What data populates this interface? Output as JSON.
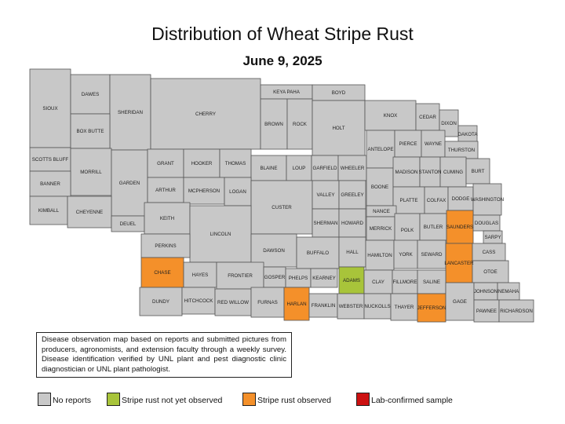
{
  "title": "Distribution of Wheat Stripe Rust",
  "date": "June 9, 2025",
  "colors": {
    "no_reports": "#c8c8c8",
    "not_observed": "#a8c43a",
    "observed": "#f4902a",
    "lab_confirmed": "#cc1111"
  },
  "note": "Disease observation map based on reports and submitted pictures from producers, agronomists, and extension faculty through a weekly survey. Disease identification verified by UNL plant and pest diagnostic clinic diagnostician or UNL plant pathologist.",
  "legend": [
    {
      "label": "No reports",
      "status": "none"
    },
    {
      "label": "Stripe rust not yet observed",
      "status": "not_observed"
    },
    {
      "label": "Stripe rust observed",
      "status": "observed"
    },
    {
      "label": "Lab-confirmed sample",
      "status": "lab_confirmed"
    }
  ],
  "counties": [
    {
      "name": "SIOUX",
      "status": "none"
    },
    {
      "name": "DAWES",
      "status": "none"
    },
    {
      "name": "SHERIDAN",
      "status": "none"
    },
    {
      "name": "CHERRY",
      "status": "none"
    },
    {
      "name": "KEYA PAHA",
      "status": "none"
    },
    {
      "name": "BOYD",
      "status": "none"
    },
    {
      "name": "BOX BUTTE",
      "status": "none"
    },
    {
      "name": "BROWN",
      "status": "none"
    },
    {
      "name": "ROCK",
      "status": "none"
    },
    {
      "name": "HOLT",
      "status": "none"
    },
    {
      "name": "KNOX",
      "status": "none"
    },
    {
      "name": "CEDAR",
      "status": "none"
    },
    {
      "name": "DIXON",
      "status": "none"
    },
    {
      "name": "DAKOTA",
      "status": "none"
    },
    {
      "name": "SCOTTS BLUFF",
      "status": "none"
    },
    {
      "name": "MORRILL",
      "status": "none"
    },
    {
      "name": "GARDEN",
      "status": "none"
    },
    {
      "name": "GRANT",
      "status": "none"
    },
    {
      "name": "HOOKER",
      "status": "none"
    },
    {
      "name": "THOMAS",
      "status": "none"
    },
    {
      "name": "BLAINE",
      "status": "none"
    },
    {
      "name": "LOUP",
      "status": "none"
    },
    {
      "name": "GARFIELD",
      "status": "none"
    },
    {
      "name": "WHEELER",
      "status": "none"
    },
    {
      "name": "ANTELOPE",
      "status": "none"
    },
    {
      "name": "PIERCE",
      "status": "none"
    },
    {
      "name": "WAYNE",
      "status": "none"
    },
    {
      "name": "THURSTON",
      "status": "none"
    },
    {
      "name": "BANNER",
      "status": "none"
    },
    {
      "name": "ARTHUR",
      "status": "none"
    },
    {
      "name": "MCPHERSON",
      "status": "none"
    },
    {
      "name": "LOGAN",
      "status": "none"
    },
    {
      "name": "CUSTER",
      "status": "none"
    },
    {
      "name": "VALLEY",
      "status": "none"
    },
    {
      "name": "GREELEY",
      "status": "none"
    },
    {
      "name": "BOONE",
      "status": "none"
    },
    {
      "name": "MADISON",
      "status": "none"
    },
    {
      "name": "STANTON",
      "status": "none"
    },
    {
      "name": "CUMING",
      "status": "none"
    },
    {
      "name": "BURT",
      "status": "none"
    },
    {
      "name": "KIMBALL",
      "status": "none"
    },
    {
      "name": "CHEYENNE",
      "status": "none"
    },
    {
      "name": "DEUEL",
      "status": "none"
    },
    {
      "name": "KEITH",
      "status": "none"
    },
    {
      "name": "PLATTE",
      "status": "none"
    },
    {
      "name": "COLFAX",
      "status": "none"
    },
    {
      "name": "DODGE",
      "status": "none"
    },
    {
      "name": "WASHINGTON",
      "status": "none"
    },
    {
      "name": "NANCE",
      "status": "none"
    },
    {
      "name": "SHERMAN",
      "status": "none"
    },
    {
      "name": "HOWARD",
      "status": "none"
    },
    {
      "name": "MERRICK",
      "status": "none"
    },
    {
      "name": "POLK",
      "status": "none"
    },
    {
      "name": "BUTLER",
      "status": "none"
    },
    {
      "name": "SAUNDERS",
      "status": "observed"
    },
    {
      "name": "DOUGLAS",
      "status": "none"
    },
    {
      "name": "SARPY",
      "status": "none"
    },
    {
      "name": "LINCOLN",
      "status": "none"
    },
    {
      "name": "PERKINS",
      "status": "none"
    },
    {
      "name": "DAWSON",
      "status": "none"
    },
    {
      "name": "BUFFALO",
      "status": "none"
    },
    {
      "name": "HALL",
      "status": "none"
    },
    {
      "name": "HAMILTON",
      "status": "none"
    },
    {
      "name": "YORK",
      "status": "none"
    },
    {
      "name": "SEWARD",
      "status": "none"
    },
    {
      "name": "LANCASTER",
      "status": "observed"
    },
    {
      "name": "CASS",
      "status": "none"
    },
    {
      "name": "OTOE",
      "status": "none"
    },
    {
      "name": "CHASE",
      "status": "observed"
    },
    {
      "name": "HAYES",
      "status": "none"
    },
    {
      "name": "FRONTIER",
      "status": "none"
    },
    {
      "name": "GOSPER",
      "status": "none"
    },
    {
      "name": "PHELPS",
      "status": "none"
    },
    {
      "name": "KEARNEY",
      "status": "none"
    },
    {
      "name": "ADAMS",
      "status": "not_observed"
    },
    {
      "name": "CLAY",
      "status": "none"
    },
    {
      "name": "FILLMORE",
      "status": "none"
    },
    {
      "name": "SALINE",
      "status": "none"
    },
    {
      "name": "DUNDY",
      "status": "none"
    },
    {
      "name": "HITCHCOCK",
      "status": "none"
    },
    {
      "name": "RED WILLOW",
      "status": "none"
    },
    {
      "name": "FURNAS",
      "status": "none"
    },
    {
      "name": "HARLAN",
      "status": "observed"
    },
    {
      "name": "FRANKLIN",
      "status": "none"
    },
    {
      "name": "WEBSTER",
      "status": "none"
    },
    {
      "name": "NUCKOLLS",
      "status": "none"
    },
    {
      "name": "THAYER",
      "status": "none"
    },
    {
      "name": "JEFFERSON",
      "status": "observed"
    },
    {
      "name": "GAGE",
      "status": "none"
    },
    {
      "name": "JOHNSON",
      "status": "none"
    },
    {
      "name": "NEMAHA",
      "status": "none"
    },
    {
      "name": "PAWNEE",
      "status": "none"
    },
    {
      "name": "RICHARDSON",
      "status": "none"
    }
  ]
}
